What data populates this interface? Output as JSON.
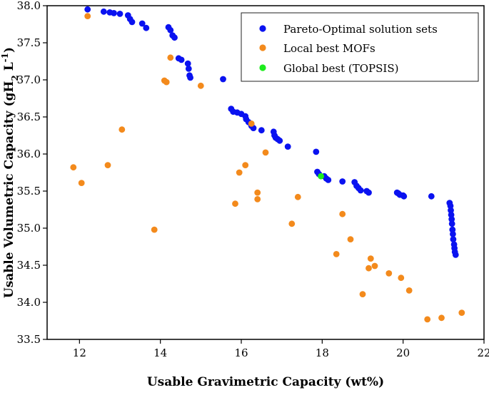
{
  "chart_data": {
    "type": "scatter",
    "title": "",
    "xlabel": "Usable Gravimetric Capacity (wt%)",
    "ylabel": "Usable Volumetric Capacity (gH2 L-1)",
    "ylabel_parts": {
      "main": "Usable Volumetric Capacity (gH",
      "sub": "2",
      "mid": " L",
      "sup": "-1",
      "end": ")"
    },
    "xlim": [
      11.2,
      22
    ],
    "ylim": [
      33.5,
      38
    ],
    "xticks": [
      12,
      14,
      16,
      18,
      20,
      22
    ],
    "yticks": [
      33.5,
      34.0,
      34.5,
      35.0,
      35.5,
      36.0,
      36.5,
      37.0,
      37.5,
      38.0
    ],
    "xtick_labels": [
      "12",
      "14",
      "16",
      "18",
      "20",
      "22"
    ],
    "ytick_labels": [
      "33.5",
      "34.0",
      "34.5",
      "35.0",
      "35.5",
      "36.0",
      "36.5",
      "37.0",
      "37.5",
      "38.0"
    ],
    "legend_position": "top-right",
    "series": [
      {
        "name": "Pareto-Optimal solution sets",
        "color": "#0a12f0",
        "points": [
          [
            12.2,
            37.95
          ],
          [
            12.6,
            37.92
          ],
          [
            12.75,
            37.91
          ],
          [
            12.85,
            37.9
          ],
          [
            13.0,
            37.89
          ],
          [
            13.2,
            37.87
          ],
          [
            13.25,
            37.82
          ],
          [
            13.3,
            37.78
          ],
          [
            13.55,
            37.76
          ],
          [
            13.65,
            37.7
          ],
          [
            14.2,
            37.71
          ],
          [
            14.25,
            37.67
          ],
          [
            14.3,
            37.6
          ],
          [
            14.35,
            37.57
          ],
          [
            14.45,
            37.29
          ],
          [
            14.52,
            37.27
          ],
          [
            14.68,
            37.22
          ],
          [
            14.7,
            37.15
          ],
          [
            14.72,
            37.06
          ],
          [
            14.74,
            37.03
          ],
          [
            15.55,
            37.01
          ],
          [
            15.75,
            36.61
          ],
          [
            15.8,
            36.57
          ],
          [
            15.9,
            36.56
          ],
          [
            16.0,
            36.54
          ],
          [
            16.1,
            36.51
          ],
          [
            16.12,
            36.47
          ],
          [
            16.18,
            36.43
          ],
          [
            16.25,
            36.38
          ],
          [
            16.3,
            36.35
          ],
          [
            16.5,
            36.32
          ],
          [
            16.8,
            36.3
          ],
          [
            16.82,
            36.25
          ],
          [
            16.85,
            36.22
          ],
          [
            16.9,
            36.2
          ],
          [
            16.95,
            36.18
          ],
          [
            17.15,
            36.1
          ],
          [
            17.85,
            36.03
          ],
          [
            17.88,
            35.76
          ],
          [
            17.92,
            35.73
          ],
          [
            18.05,
            35.7
          ],
          [
            18.1,
            35.67
          ],
          [
            18.15,
            35.65
          ],
          [
            18.5,
            35.63
          ],
          [
            18.8,
            35.62
          ],
          [
            18.85,
            35.57
          ],
          [
            18.9,
            35.54
          ],
          [
            18.95,
            35.51
          ],
          [
            19.1,
            35.5
          ],
          [
            19.15,
            35.48
          ],
          [
            19.85,
            35.48
          ],
          [
            19.88,
            35.47
          ],
          [
            19.92,
            35.45
          ],
          [
            20.0,
            35.44
          ],
          [
            20.02,
            35.43
          ],
          [
            20.7,
            35.43
          ],
          [
            21.15,
            35.34
          ],
          [
            21.17,
            35.3
          ],
          [
            21.18,
            35.24
          ],
          [
            21.19,
            35.18
          ],
          [
            21.2,
            35.12
          ],
          [
            21.21,
            35.06
          ],
          [
            21.22,
            34.98
          ],
          [
            21.23,
            34.92
          ],
          [
            21.24,
            34.85
          ],
          [
            21.26,
            34.78
          ],
          [
            21.27,
            34.73
          ],
          [
            21.28,
            34.68
          ],
          [
            21.3,
            34.64
          ]
        ]
      },
      {
        "name": "Local best MOFs",
        "color": "#f38a1c",
        "points": [
          [
            12.2,
            37.86
          ],
          [
            14.25,
            37.3
          ],
          [
            14.1,
            36.99
          ],
          [
            14.15,
            36.97
          ],
          [
            15.0,
            36.92
          ],
          [
            13.05,
            36.33
          ],
          [
            16.25,
            36.41
          ],
          [
            16.6,
            36.02
          ],
          [
            16.1,
            35.85
          ],
          [
            15.95,
            35.75
          ],
          [
            11.85,
            35.82
          ],
          [
            12.7,
            35.85
          ],
          [
            12.05,
            35.61
          ],
          [
            16.4,
            35.48
          ],
          [
            17.4,
            35.42
          ],
          [
            16.4,
            35.39
          ],
          [
            15.85,
            35.33
          ],
          [
            18.5,
            35.19
          ],
          [
            17.25,
            35.06
          ],
          [
            13.85,
            34.98
          ],
          [
            18.7,
            34.85
          ],
          [
            18.35,
            34.65
          ],
          [
            19.2,
            34.59
          ],
          [
            19.3,
            34.49
          ],
          [
            19.15,
            34.46
          ],
          [
            19.65,
            34.39
          ],
          [
            19.95,
            34.33
          ],
          [
            20.15,
            34.16
          ],
          [
            19.0,
            34.11
          ],
          [
            21.45,
            33.86
          ],
          [
            20.95,
            33.79
          ],
          [
            20.6,
            33.77
          ]
        ]
      },
      {
        "name": "Global best (TOPSIS)",
        "color": "#1dec1d",
        "points": [
          [
            17.97,
            35.7
          ]
        ]
      }
    ]
  }
}
